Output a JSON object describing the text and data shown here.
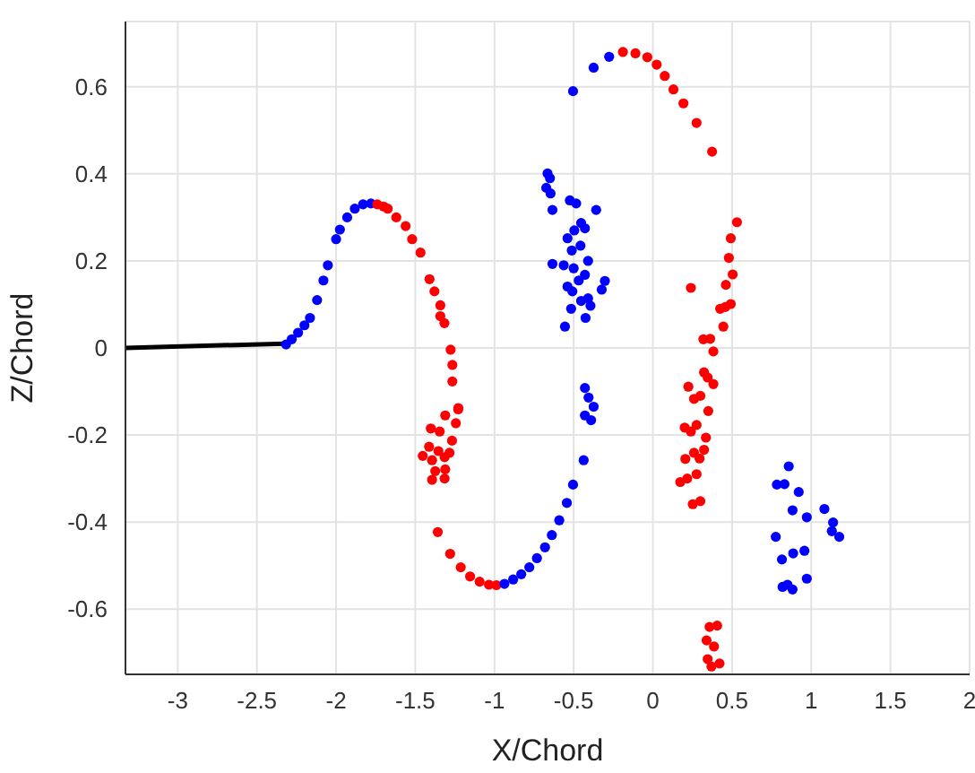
{
  "chart_data": {
    "type": "scatter",
    "xlabel": "X/Chord",
    "ylabel": "Z/Chord",
    "xlim": [
      -3.33,
      2
    ],
    "ylim": [
      -0.75,
      0.75
    ],
    "xticks": [
      -3,
      -2.5,
      -2,
      -1.5,
      -1,
      -0.5,
      0,
      0.5,
      1,
      1.5,
      2
    ],
    "yticks": [
      -0.6,
      -0.4,
      -0.2,
      0,
      0.2,
      0.4,
      0.6
    ],
    "grid": true,
    "marker": "circle",
    "series": [
      {
        "type": "line",
        "color": "#000000",
        "line_style": "solid",
        "marker": "none",
        "x": [
          -3.33,
          -2.32
        ],
        "values": [
          0,
          0.01
        ]
      },
      {
        "color": "#0000ff",
        "x": [
          -2.316,
          -2.28,
          -2.24,
          -2.2,
          -2.165,
          -2.12,
          -2.08,
          -2.052,
          -2.0,
          -1.976,
          -1.93,
          -1.882,
          -1.83,
          -1.78
        ],
        "values": [
          0.008,
          0.02,
          0.035,
          0.052,
          0.069,
          0.11,
          0.155,
          0.19,
          0.25,
          0.272,
          0.3,
          0.32,
          0.33,
          0.332
        ]
      },
      {
        "color": "#ff0000",
        "x": [
          -1.74,
          -1.7,
          -1.674,
          -1.62,
          -1.561,
          -1.52,
          -1.467,
          -1.41,
          -1.379,
          -1.342,
          -1.342,
          -1.316,
          -1.277,
          -1.266,
          -1.266,
          -1.229,
          -1.228,
          -1.244,
          -1.311,
          -1.402,
          -1.346,
          -1.268,
          -1.413,
          -1.354,
          -1.284,
          -1.453,
          -1.394,
          -1.315,
          -1.374,
          -1.311,
          -1.394,
          -1.315,
          -1.358,
          -1.28,
          -1.213,
          -1.154,
          -1.094,
          -1.035,
          -0.988
        ],
        "values": [
          0.33,
          0.325,
          0.32,
          0.3,
          0.28,
          0.25,
          0.219,
          0.158,
          0.13,
          0.098,
          0.073,
          0.057,
          -0.004,
          -0.039,
          -0.077,
          -0.141,
          -0.138,
          -0.173,
          -0.155,
          -0.185,
          -0.192,
          -0.213,
          -0.227,
          -0.237,
          -0.241,
          -0.248,
          -0.258,
          -0.251,
          -0.283,
          -0.279,
          -0.303,
          -0.3,
          -0.423,
          -0.473,
          -0.504,
          -0.525,
          -0.537,
          -0.544,
          -0.545
        ]
      },
      {
        "color": "#0000ff",
        "x": [
          -0.937,
          -0.882,
          -0.831,
          -0.78,
          -0.732,
          -0.681,
          -0.638,
          -0.591,
          -0.543,
          -0.504,
          -0.437,
          -0.429,
          -0.406,
          -0.374,
          -0.429,
          -0.39,
          -0.665,
          -0.65,
          -0.673,
          -0.646,
          -0.634,
          -0.524,
          -0.484,
          -0.358,
          -0.453,
          -0.496,
          -0.429,
          -0.539,
          -0.512,
          -0.457,
          -0.634,
          -0.563,
          -0.5,
          -0.409,
          -0.429,
          -0.468,
          -0.539,
          -0.508,
          -0.303,
          -0.323,
          -0.409,
          -0.453,
          -0.394,
          -0.516,
          -0.425,
          -0.555,
          -0.504,
          -0.374,
          -0.276,
          0.858,
          0.783,
          0.831,
          0.921,
          1.083,
          0.882,
          0.972,
          1.138,
          1.13,
          1.177,
          0.776,
          0.886,
          0.957,
          0.815,
          0.972,
          0.819,
          0.85,
          0.882
        ],
        "values": [
          -0.542,
          -0.532,
          -0.52,
          -0.504,
          -0.483,
          -0.458,
          -0.43,
          -0.396,
          -0.356,
          -0.314,
          -0.258,
          -0.092,
          -0.114,
          -0.135,
          -0.155,
          -0.166,
          0.401,
          0.39,
          0.368,
          0.355,
          0.317,
          0.339,
          0.332,
          0.317,
          0.287,
          0.27,
          0.275,
          0.252,
          0.224,
          0.235,
          0.193,
          0.19,
          0.183,
          0.2,
          0.168,
          0.155,
          0.141,
          0.13,
          0.154,
          0.134,
          0.114,
          0.108,
          0.097,
          0.09,
          0.069,
          0.049,
          0.59,
          0.644,
          0.669,
          -0.272,
          -0.314,
          -0.313,
          -0.331,
          -0.37,
          -0.373,
          -0.389,
          -0.401,
          -0.421,
          -0.434,
          -0.434,
          -0.472,
          -0.466,
          -0.486,
          -0.53,
          -0.549,
          -0.544,
          -0.555
        ]
      },
      {
        "color": "#ff0000",
        "x": [
          -0.189,
          -0.11,
          -0.035,
          0.024,
          0.075,
          0.13,
          0.193,
          0.276,
          0.374,
          0.531,
          0.492,
          0.48,
          0.504,
          0.24,
          0.461,
          0.492,
          0.457,
          0.425,
          0.445,
          0.362,
          0.319,
          0.382,
          0.323,
          0.346,
          0.382,
          0.224,
          0.3,
          0.26,
          0.35,
          0.201,
          0.276,
          0.24,
          0.335,
          0.323,
          0.205,
          0.295,
          0.26,
          0.173,
          0.217,
          0.276,
          0.252,
          0.3,
          0.358,
          0.406,
          0.339,
          0.386,
          0.346,
          0.421,
          0.37
        ],
        "values": [
          0.68,
          0.677,
          0.668,
          0.651,
          0.625,
          0.594,
          0.562,
          0.517,
          0.451,
          0.289,
          0.252,
          0.207,
          0.169,
          0.138,
          0.145,
          0.101,
          0.094,
          0.09,
          0.049,
          0.021,
          0.02,
          -0.008,
          -0.056,
          -0.068,
          -0.083,
          -0.089,
          -0.11,
          -0.117,
          -0.145,
          -0.183,
          -0.177,
          -0.192,
          -0.206,
          -0.234,
          -0.255,
          -0.254,
          -0.241,
          -0.308,
          -0.3,
          -0.29,
          -0.359,
          -0.352,
          -0.641,
          -0.638,
          -0.672,
          -0.686,
          -0.715,
          -0.725,
          -0.732
        ]
      }
    ]
  }
}
